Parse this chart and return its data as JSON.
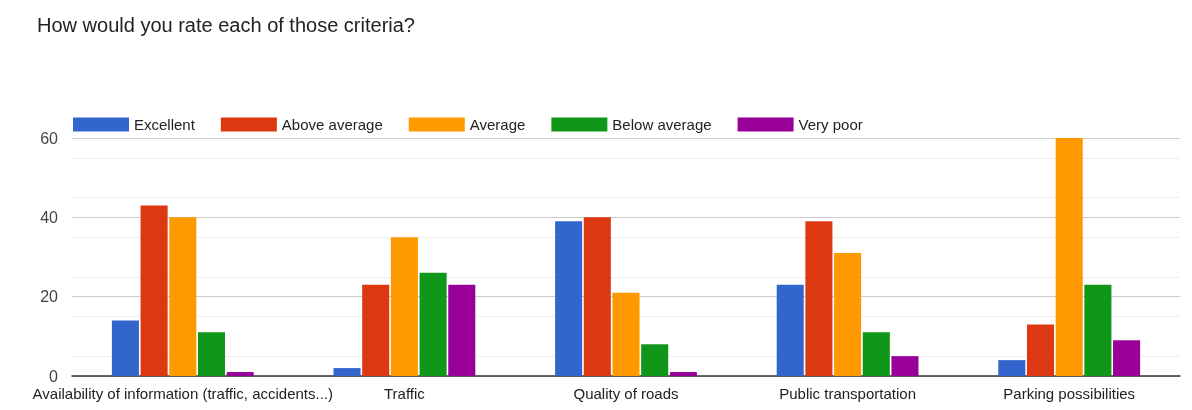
{
  "chart_data": {
    "type": "bar",
    "title": "How would you rate each of those criteria?",
    "categories": [
      "Availability of information (traffic, accidents...)",
      "Traffic",
      "Quality of roads",
      "Public transportation",
      "Parking possibilities"
    ],
    "series": [
      {
        "name": "Excellent",
        "color": "#3366cc",
        "values": [
          14,
          2,
          39,
          23,
          4
        ]
      },
      {
        "name": "Above average",
        "color": "#dc3912",
        "values": [
          43,
          23,
          40,
          39,
          13
        ]
      },
      {
        "name": "Average",
        "color": "#ff9900",
        "values": [
          40,
          35,
          21,
          31,
          60
        ]
      },
      {
        "name": "Below average",
        "color": "#109618",
        "values": [
          11,
          26,
          8,
          11,
          23
        ]
      },
      {
        "name": "Very poor",
        "color": "#990099",
        "values": [
          1,
          23,
          1,
          5,
          9
        ]
      }
    ],
    "ylim": [
      0,
      60
    ],
    "yticks": [
      0,
      20,
      40,
      60
    ],
    "grid": "y",
    "legend": "top left"
  }
}
